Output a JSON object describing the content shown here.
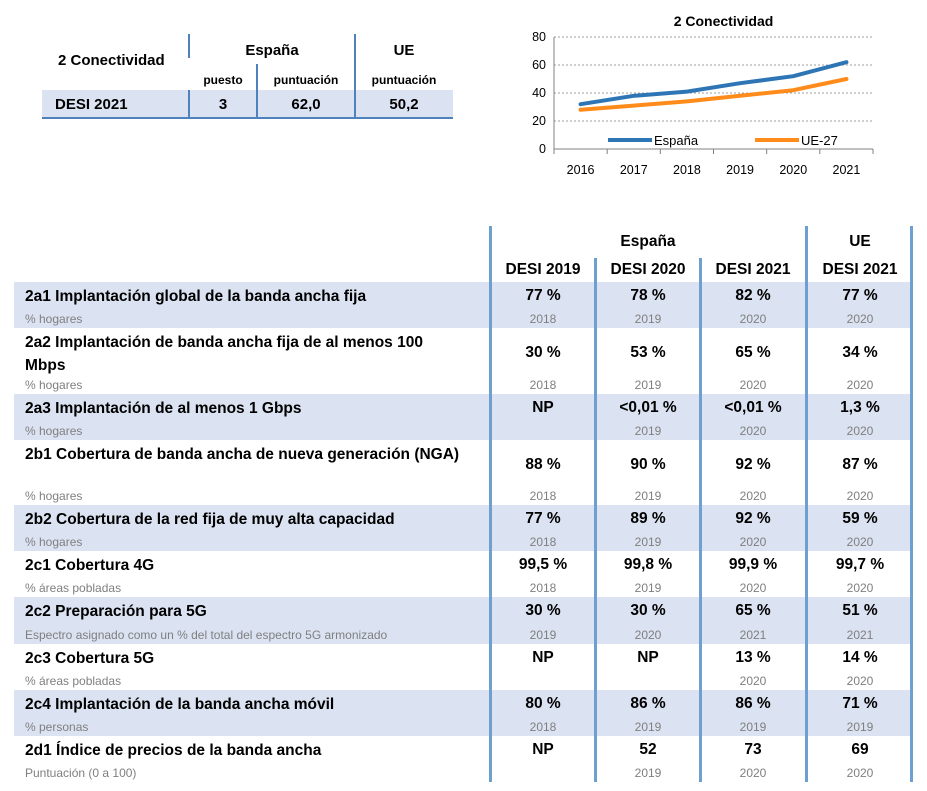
{
  "summary": {
    "title": "2 Conectividad",
    "spain_header": "España",
    "eu_header": "UE",
    "sub_rank": "puesto",
    "sub_score": "puntuación",
    "sub_eu_score": "puntuación",
    "row_label": "DESI 2021",
    "rank": "3",
    "score": "62,0",
    "eu_score": "50,2"
  },
  "chart_data": {
    "type": "line",
    "title": "2 Conectividad",
    "x": [
      "2016",
      "2017",
      "2018",
      "2019",
      "2020",
      "2021"
    ],
    "y_ticks": [
      "0",
      "20",
      "40",
      "60",
      "80"
    ],
    "ylim": [
      0,
      80
    ],
    "series": [
      {
        "name": "España",
        "color": "#2e75b6",
        "values": [
          32,
          38,
          41,
          47,
          52,
          62
        ]
      },
      {
        "name": "UE-27",
        "color": "#ff8c1a",
        "values": [
          28,
          31,
          34,
          38,
          42,
          50
        ]
      }
    ],
    "legend_position": "bottom"
  },
  "table": {
    "group_spain": "España",
    "group_eu": "UE",
    "columns": [
      "DESI 2019",
      "DESI 2020",
      "DESI 2021",
      "DESI 2021"
    ],
    "rows": [
      {
        "title": "2a1 Implantación global de la banda ancha fija",
        "unit": "% hogares",
        "values": [
          "77 %",
          "78 %",
          "82 %",
          "77 %"
        ],
        "years": [
          "2018",
          "2019",
          "2020",
          "2020"
        ]
      },
      {
        "title": "2a2 Implantación de banda ancha fija de al menos 100 Mbps",
        "unit": "% hogares",
        "values": [
          "30 %",
          "53 %",
          "65 %",
          "34 %"
        ],
        "years": [
          "2018",
          "2019",
          "2020",
          "2020"
        ]
      },
      {
        "title": "2a3 Implantación de al menos 1 Gbps",
        "unit": "% hogares",
        "values": [
          "NP",
          "<0,01 %",
          "<0,01 %",
          "1,3 %"
        ],
        "years": [
          "",
          "2019",
          "2020",
          "2020"
        ]
      },
      {
        "title": "2b1 Cobertura de banda ancha de nueva generación (NGA)",
        "unit": "% hogares",
        "values": [
          "88 %",
          "90 %",
          "92 %",
          "87 %"
        ],
        "years": [
          "2018",
          "2019",
          "2020",
          "2020"
        ]
      },
      {
        "title": "2b2 Cobertura de la red fija de muy alta capacidad",
        "unit": "% hogares",
        "values": [
          "77 %",
          "89 %",
          "92 %",
          "59 %"
        ],
        "years": [
          "2018",
          "2019",
          "2020",
          "2020"
        ]
      },
      {
        "title": "2c1 Cobertura 4G",
        "unit": "% áreas pobladas",
        "values": [
          "99,5 %",
          "99,8 %",
          "99,9 %",
          "99,7 %"
        ],
        "years": [
          "2018",
          "2019",
          "2020",
          "2020"
        ]
      },
      {
        "title": "2c2 Preparación para 5G",
        "unit": "Espectro asignado como un % del total del espectro 5G armonizado",
        "values": [
          "30 %",
          "30 %",
          "65 %",
          "51 %"
        ],
        "years": [
          "2019",
          "2020",
          "2021",
          "2021"
        ]
      },
      {
        "title": "2c3 Cobertura 5G",
        "unit": "% áreas pobladas",
        "values": [
          "NP",
          "NP",
          "13 %",
          "14 %"
        ],
        "years": [
          "",
          "",
          "2020",
          "2020"
        ]
      },
      {
        "title": "2c4 Implantación de la banda ancha móvil",
        "unit": "% personas",
        "values": [
          "80 %",
          "86 %",
          "86 %",
          "71 %"
        ],
        "years": [
          "2018",
          "2019",
          "2019",
          "2019"
        ]
      },
      {
        "title": "2d1 Índice de precios de la banda ancha",
        "unit": "Puntuación (0 a 100)",
        "values": [
          "NP",
          "52",
          "73",
          "69"
        ],
        "years": [
          "",
          "2019",
          "2020",
          "2020"
        ]
      }
    ]
  }
}
